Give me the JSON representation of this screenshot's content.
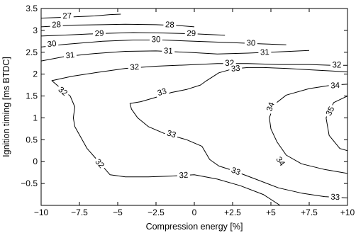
{
  "chart_data": {
    "type": "contour",
    "title": "",
    "xlabel": "Compression energy [%]",
    "ylabel": "Ignition timing [ms BTDC]",
    "xlim": [
      -10,
      10
    ],
    "ylim": [
      -1,
      3.5
    ],
    "x_ticks": [
      -10,
      -7.5,
      -5,
      -2.5,
      0,
      2.5,
      5,
      7.5,
      10
    ],
    "x_tick_labels": [
      "−10",
      "−7.5",
      "−5",
      "−2.5",
      "0",
      "+2.5",
      "+5",
      "+7.5",
      "+10"
    ],
    "y_ticks": [
      -0.5,
      0,
      0.5,
      1,
      1.5,
      2,
      2.5,
      3,
      3.5
    ],
    "y_tick_labels": [
      "−0.5",
      "0",
      "0.5",
      "1",
      "1.5",
      "2",
      "2.5",
      "3",
      "3.5"
    ],
    "grid": false,
    "contours": [
      {
        "level": 27,
        "label": "27",
        "label_at": [
          [
            -8.3,
            3.32
          ]
        ],
        "points": [
          [
            -10,
            3.28
          ],
          [
            -8.5,
            3.3
          ],
          [
            -6.5,
            3.33
          ],
          [
            -5.5,
            3.36
          ],
          [
            -4.8,
            3.37
          ]
        ]
      },
      {
        "level": 28,
        "label": "28",
        "label_at": [
          [
            -9.0,
            3.12
          ],
          [
            -1.6,
            3.12
          ]
        ],
        "points": [
          [
            -10,
            3.08
          ],
          [
            -8.0,
            3.12
          ],
          [
            -6.0,
            3.13
          ],
          [
            -4.5,
            3.14
          ],
          [
            -2.5,
            3.13
          ],
          [
            -1.0,
            3.11
          ],
          [
            0.0,
            3.08
          ]
        ]
      },
      {
        "level": 29,
        "label": "29",
        "label_at": [
          [
            -6.2,
            2.92
          ],
          [
            -0.2,
            2.92
          ]
        ],
        "points": [
          [
            -10,
            2.87
          ],
          [
            -8.0,
            2.9
          ],
          [
            -6.0,
            2.93
          ],
          [
            -4.0,
            2.95
          ],
          [
            -2.0,
            2.94
          ],
          [
            0.0,
            2.92
          ],
          [
            2.0,
            2.89
          ]
        ]
      },
      {
        "level": 30,
        "label": "30",
        "label_at": [
          [
            -9.3,
            2.68
          ],
          [
            -2.5,
            2.78
          ],
          [
            3.7,
            2.7
          ]
        ],
        "points": [
          [
            -10,
            2.62
          ],
          [
            -8.5,
            2.68
          ],
          [
            -6.0,
            2.75
          ],
          [
            -4.0,
            2.78
          ],
          [
            -2.0,
            2.78
          ],
          [
            0.0,
            2.75
          ],
          [
            2.5,
            2.72
          ],
          [
            4.5,
            2.69
          ],
          [
            6.0,
            2.67
          ]
        ]
      },
      {
        "level": 31,
        "label": "31",
        "label_at": [
          [
            -8.1,
            2.42
          ],
          [
            -1.7,
            2.52
          ],
          [
            4.6,
            2.49
          ]
        ],
        "points": [
          [
            -10,
            2.3
          ],
          [
            -8.5,
            2.4
          ],
          [
            -6.5,
            2.47
          ],
          [
            -4.5,
            2.52
          ],
          [
            -2.5,
            2.53
          ],
          [
            -0.5,
            2.5
          ],
          [
            1.5,
            2.46
          ],
          [
            3.5,
            2.48
          ],
          [
            5.5,
            2.51
          ],
          [
            7.5,
            2.54
          ]
        ]
      },
      {
        "level": 32,
        "label": "32",
        "label_at": [
          [
            -8.6,
            1.6
          ],
          [
            -3.9,
            2.15
          ],
          [
            2.3,
            2.24
          ],
          [
            9.3,
            2.2
          ],
          [
            -6.2,
            -0.05
          ],
          [
            -0.7,
            -0.32
          ]
        ],
        "points": [
          [
            10,
            2.2
          ],
          [
            9.0,
            2.2
          ],
          [
            7.5,
            2.22
          ],
          [
            5.5,
            2.22
          ],
          [
            3.5,
            2.24
          ],
          [
            1.5,
            2.24
          ],
          [
            -0.5,
            2.21
          ],
          [
            -2.5,
            2.18
          ],
          [
            -4.5,
            2.13
          ],
          [
            -6.5,
            2.03
          ],
          [
            -8.0,
            1.95
          ],
          [
            -9.3,
            1.85
          ],
          [
            -8.8,
            1.7
          ],
          [
            -8.1,
            1.5
          ],
          [
            -7.8,
            1.25
          ],
          [
            -7.9,
            1.0
          ],
          [
            -7.8,
            0.8
          ],
          [
            -7.4,
            0.55
          ],
          [
            -7.0,
            0.3
          ],
          [
            -6.5,
            0.1
          ],
          [
            -6.0,
            -0.1
          ],
          [
            -5.5,
            -0.3
          ],
          [
            -4.5,
            -0.35
          ],
          [
            -3.0,
            -0.35
          ],
          [
            -1.5,
            -0.33
          ],
          [
            0.0,
            -0.3
          ],
          [
            1.5,
            -0.4
          ],
          [
            3.0,
            -0.55
          ],
          [
            4.5,
            -0.75
          ],
          [
            5.6,
            -1.0
          ]
        ]
      },
      {
        "level": 33,
        "label": "33",
        "label_at": [
          [
            -2.1,
            1.58
          ],
          [
            2.7,
            2.12
          ],
          [
            -1.5,
            0.62
          ],
          [
            2.7,
            -0.23
          ],
          [
            9.2,
            -0.82
          ]
        ],
        "points": [
          [
            10,
            2.05
          ],
          [
            9.0,
            2.07
          ],
          [
            7.5,
            2.1
          ],
          [
            6.0,
            2.13
          ],
          [
            4.5,
            2.15
          ],
          [
            3.5,
            2.15
          ],
          [
            2.5,
            2.12
          ],
          [
            1.6,
            2.03
          ],
          [
            0.8,
            1.85
          ],
          [
            0.4,
            1.75
          ],
          [
            -0.5,
            1.65
          ],
          [
            -1.5,
            1.58
          ],
          [
            -2.5,
            1.47
          ],
          [
            -3.5,
            1.37
          ],
          [
            -4.2,
            1.33
          ],
          [
            -4.1,
            1.2
          ],
          [
            -3.7,
            1.0
          ],
          [
            -3.0,
            0.8
          ],
          [
            -2.0,
            0.65
          ],
          [
            -0.5,
            0.5
          ],
          [
            0.5,
            0.35
          ],
          [
            1.0,
            0.05
          ],
          [
            1.6,
            -0.1
          ],
          [
            2.5,
            -0.2
          ],
          [
            4.0,
            -0.4
          ],
          [
            5.5,
            -0.6
          ],
          [
            7.0,
            -0.72
          ],
          [
            8.5,
            -0.8
          ],
          [
            10,
            -0.83
          ]
        ]
      },
      {
        "level": 34,
        "label": "34",
        "label_at": [
          [
            5.0,
            1.25
          ],
          [
            9.2,
            1.73
          ],
          [
            5.6,
            0.0
          ]
        ],
        "points": [
          [
            10,
            1.77
          ],
          [
            9.0,
            1.75
          ],
          [
            7.5,
            1.67
          ],
          [
            6.0,
            1.52
          ],
          [
            5.2,
            1.3
          ],
          [
            4.9,
            1.0
          ],
          [
            5.0,
            0.75
          ],
          [
            5.4,
            0.45
          ],
          [
            6.0,
            0.15
          ],
          [
            7.0,
            -0.05
          ],
          [
            8.5,
            -0.18
          ],
          [
            10,
            -0.27
          ]
        ]
      },
      {
        "level": 35,
        "label": "35",
        "label_at": [
          [
            8.9,
            1.15
          ]
        ],
        "points": [
          [
            10,
            1.5
          ],
          [
            9.1,
            1.35
          ],
          [
            8.6,
            1.0
          ],
          [
            8.8,
            0.6
          ],
          [
            9.5,
            0.3
          ],
          [
            10,
            0.25
          ]
        ]
      }
    ]
  }
}
